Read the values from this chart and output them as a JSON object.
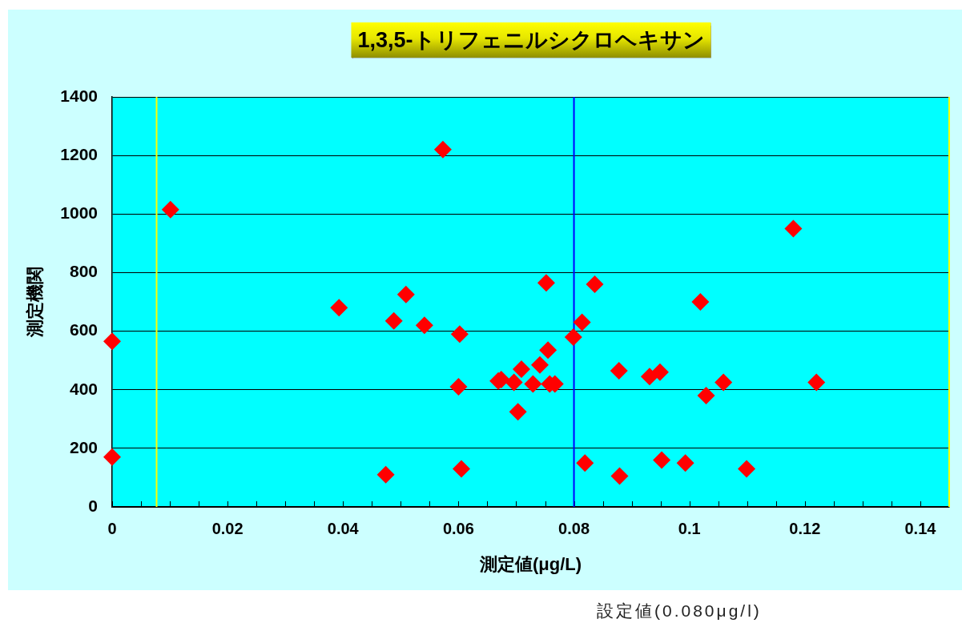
{
  "chart_data": {
    "type": "scatter",
    "title": "1,3,5-トリフェニルシクロヘキサン",
    "xlabel": "測定値(μg/L)",
    "ylabel": "測定機関",
    "annotations": [
      "設定値(0.080μg/l)"
    ],
    "series": [
      {
        "color": "#ff0000",
        "x": [
          0,
          0,
          0.0101,
          0.0393,
          0.0474,
          0.0488,
          0.0509,
          0.0541,
          0.0573,
          0.06,
          0.0602,
          0.0605,
          0.0669,
          0.0674,
          0.0696,
          0.0703,
          0.0709,
          0.0729,
          0.0741,
          0.0752,
          0.0755,
          0.0758,
          0.0767,
          0.0799,
          0.0814,
          0.0819,
          0.0836,
          0.0878,
          0.0879,
          0.0931,
          0.0949,
          0.0952,
          0.0993,
          0.1019,
          0.1029,
          0.1059,
          0.1099,
          0.118,
          0.122
        ],
        "values": [
          170,
          565,
          1015,
          680,
          110,
          635,
          725,
          620,
          1220,
          410,
          590,
          130,
          430,
          435,
          425,
          325,
          470,
          420,
          485,
          765,
          535,
          420,
          420,
          580,
          630,
          150,
          760,
          465,
          105,
          445,
          460,
          160,
          150,
          700,
          380,
          425,
          130,
          950,
          425
        ]
      }
    ],
    "marker": "diamond",
    "xlim": [
      0,
      0.145
    ],
    "ylim": [
      0,
      1400
    ],
    "xticks": [
      0,
      {
        "value": 0.005,
        "label": null
      },
      {
        "value": 0.01,
        "label": null
      },
      {
        "value": 0.015,
        "label": null
      },
      0.02,
      {
        "value": 0.025,
        "label": null
      },
      {
        "value": 0.03,
        "label": null
      },
      {
        "value": 0.035,
        "label": null
      },
      0.04,
      {
        "value": 0.045,
        "label": null
      },
      {
        "value": 0.05,
        "label": null
      },
      {
        "value": 0.055,
        "label": null
      },
      0.06,
      {
        "value": 0.065,
        "label": null
      },
      {
        "value": 0.07,
        "label": null
      },
      {
        "value": 0.075,
        "label": null
      },
      0.08,
      {
        "value": 0.085,
        "label": null
      },
      {
        "value": 0.09,
        "label": null
      },
      {
        "value": 0.095,
        "label": null
      },
      0.1,
      {
        "value": 0.105,
        "label": null
      },
      {
        "value": 0.11,
        "label": null
      },
      {
        "value": 0.115,
        "label": null
      },
      0.12,
      {
        "value": 0.125,
        "label": null
      },
      {
        "value": 0.13,
        "label": null
      },
      {
        "value": 0.135,
        "label": null
      },
      0.14,
      {
        "value": 0.145,
        "label": null
      }
    ],
    "yticks": [
      0,
      200,
      400,
      600,
      800,
      1000,
      1200,
      1400
    ],
    "grid": "y",
    "ref_lines": [
      {
        "axis": "x",
        "value": 0.0077,
        "color": "#ffff00"
      },
      {
        "axis": "x",
        "value": 0.08,
        "color": "#0000ff"
      },
      {
        "axis": "x",
        "value": 0.145,
        "color": "#ffff00"
      }
    ]
  }
}
